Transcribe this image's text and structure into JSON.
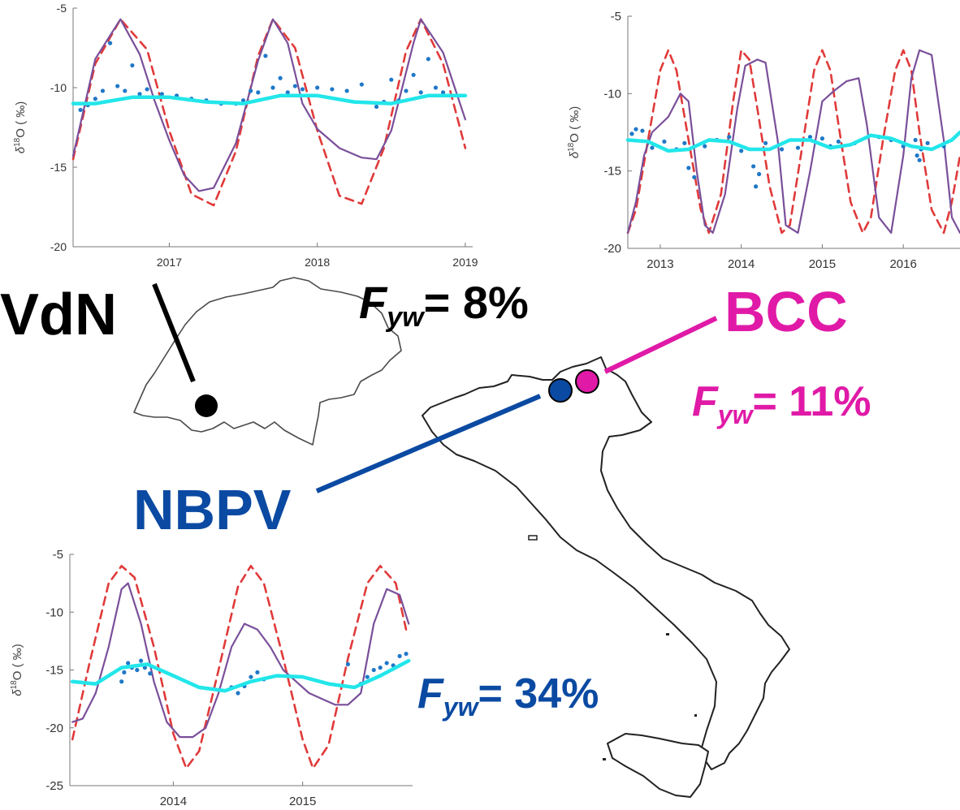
{
  "colors": {
    "vdn": "#000000",
    "bcc": "#e01aa7",
    "nbpv": "#0b4aa2",
    "sine": "#e03a3a",
    "model": "#7a4f9a",
    "young": "#22e6ea",
    "obs": "#1f78c8"
  },
  "labels": {
    "vdn": {
      "site": "VdN",
      "f_prefix": "F",
      "f_sub": "yw",
      "f_value": "= 8%"
    },
    "bcc": {
      "site": "BCC",
      "f_prefix": "F",
      "f_sub": "yw",
      "f_value": "= 11%"
    },
    "nbpv": {
      "site": "NBPV",
      "f_prefix": "F",
      "f_sub": "yw",
      "f_value": "= 34%"
    }
  },
  "maps": {
    "switzerland": {
      "marker": "vdn-site-marker"
    },
    "italy": {
      "markers": [
        "nbpv-site-marker",
        "bcc-site-marker"
      ]
    }
  },
  "chart_data": [
    {
      "id": "vdn",
      "type": "line",
      "ylabel_delta": "δ",
      "ylabel_sup": "18",
      "ylabel_rest": "O ( ‰)",
      "ylim": [
        -20,
        -5
      ],
      "yticks": [
        -5,
        -10,
        -15,
        -20
      ],
      "xlim": [
        2016.35,
        2019.05
      ],
      "xticks": [
        2017,
        2018,
        2019
      ],
      "series": [
        {
          "role": "sine",
          "style": "dashed",
          "x": [
            2016.35,
            2016.5,
            2016.67,
            2016.85,
            2017.0,
            2017.15,
            2017.3,
            2017.45,
            2017.6,
            2017.7,
            2017.85,
            2018.0,
            2018.15,
            2018.3,
            2018.45,
            2018.6,
            2018.7,
            2018.85,
            2019.0
          ],
          "y": [
            -14.5,
            -8.5,
            -5.7,
            -7.6,
            -12.7,
            -16.7,
            -17.4,
            -14.0,
            -8.0,
            -5.7,
            -7.5,
            -12.7,
            -16.8,
            -17.3,
            -13.8,
            -7.7,
            -5.7,
            -8.5,
            -13.8
          ]
        },
        {
          "role": "model",
          "style": "solid",
          "x": [
            2016.35,
            2016.5,
            2016.67,
            2016.8,
            2016.9,
            2017.0,
            2017.1,
            2017.2,
            2017.3,
            2017.45,
            2017.6,
            2017.7,
            2017.8,
            2017.9,
            2018.0,
            2018.15,
            2018.3,
            2018.4,
            2018.5,
            2018.65,
            2018.7,
            2018.85,
            2019.0
          ],
          "y": [
            -14.3,
            -8.2,
            -5.7,
            -7.9,
            -10.8,
            -13.3,
            -15.5,
            -16.5,
            -16.3,
            -13.5,
            -8.3,
            -5.7,
            -7.2,
            -11.0,
            -12.6,
            -13.8,
            -14.4,
            -14.5,
            -12.7,
            -7.2,
            -5.7,
            -7.8,
            -12.0
          ]
        },
        {
          "role": "young",
          "style": "thick",
          "x": [
            2016.35,
            2016.5,
            2016.75,
            2017.0,
            2017.25,
            2017.5,
            2017.75,
            2018.0,
            2018.25,
            2018.5,
            2018.75,
            2019.0
          ],
          "y": [
            -11.0,
            -11.0,
            -10.6,
            -10.6,
            -10.9,
            -11.0,
            -10.5,
            -10.5,
            -10.9,
            -11.0,
            -10.5,
            -10.5
          ]
        },
        {
          "role": "obs",
          "style": "dots",
          "x": [
            2016.4,
            2016.45,
            2016.5,
            2016.55,
            2016.6,
            2016.65,
            2016.7,
            2016.75,
            2016.8,
            2016.85,
            2016.95,
            2017.05,
            2017.15,
            2017.25,
            2017.35,
            2017.45,
            2017.5,
            2017.55,
            2017.6,
            2017.65,
            2017.7,
            2017.75,
            2017.8,
            2017.85,
            2017.9,
            2018.0,
            2018.1,
            2018.2,
            2018.3,
            2018.4,
            2018.45,
            2018.5,
            2018.55,
            2018.6,
            2018.65,
            2018.7,
            2018.75,
            2018.8,
            2018.85
          ],
          "y": [
            -11.4,
            -11.1,
            -10.7,
            -10.2,
            -7.2,
            -9.9,
            -10.2,
            -8.6,
            -10.4,
            -10.1,
            -10.4,
            -10.5,
            -10.7,
            -10.8,
            -11.0,
            -11.0,
            -10.8,
            -10.2,
            -10.3,
            -8.0,
            -10.0,
            -9.4,
            -10.3,
            -9.9,
            -10.1,
            -10.0,
            -10.1,
            -10.2,
            -9.8,
            -11.2,
            -10.9,
            -9.5,
            -10.8,
            -10.2,
            -9.2,
            -10.3,
            -8.2,
            -10.0,
            -10.3
          ]
        }
      ]
    },
    {
      "id": "bcc",
      "type": "line",
      "ylabel_delta": "δ",
      "ylabel_sup": "18",
      "ylabel_rest": "O ( ‰)",
      "ylim": [
        -20,
        -5
      ],
      "yticks": [
        -5,
        -10,
        -15,
        -20
      ],
      "xlim": [
        2012.6,
        2016.7
      ],
      "xticks": [
        2013,
        2014,
        2015,
        2016
      ],
      "series": [
        {
          "role": "sine",
          "style": "dashed",
          "x": [
            2012.6,
            2012.7,
            2012.85,
            2013.0,
            2013.1,
            2013.2,
            2013.35,
            2013.5,
            2013.6,
            2013.75,
            2013.9,
            2014.0,
            2014.1,
            2014.2,
            2014.35,
            2014.5,
            2014.6,
            2014.75,
            2014.9,
            2015.0,
            2015.1,
            2015.2,
            2015.35,
            2015.5,
            2015.6,
            2015.75,
            2015.9,
            2016.0,
            2016.1,
            2016.2,
            2016.35,
            2016.5,
            2016.6,
            2016.7
          ],
          "y": [
            -19.0,
            -17.5,
            -13.0,
            -8.5,
            -7.2,
            -8.5,
            -13.0,
            -17.5,
            -19.0,
            -16.5,
            -10.5,
            -7.2,
            -7.8,
            -11.0,
            -16.0,
            -19.0,
            -18.5,
            -13.5,
            -8.5,
            -7.2,
            -8.5,
            -12.0,
            -17.0,
            -19.0,
            -18.0,
            -13.0,
            -8.5,
            -7.2,
            -8.5,
            -12.5,
            -17.5,
            -19.0,
            -17.0,
            -14.0
          ]
        },
        {
          "role": "model",
          "style": "solid",
          "x": [
            2012.6,
            2012.7,
            2012.8,
            2012.9,
            2013.0,
            2013.1,
            2013.25,
            2013.35,
            2013.45,
            2013.55,
            2013.65,
            2013.8,
            2013.95,
            2014.05,
            2014.2,
            2014.3,
            2014.45,
            2014.55,
            2014.7,
            2014.85,
            2015.0,
            2015.15,
            2015.3,
            2015.45,
            2015.55,
            2015.7,
            2015.85,
            2016.0,
            2016.1,
            2016.2,
            2016.35,
            2016.5,
            2016.6,
            2016.7
          ],
          "y": [
            -19.0,
            -17.0,
            -14.0,
            -12.5,
            -12.0,
            -11.5,
            -10.0,
            -10.5,
            -15.0,
            -18.5,
            -19.0,
            -16.5,
            -11.0,
            -8.2,
            -7.8,
            -8.0,
            -13.0,
            -18.5,
            -19.0,
            -15.0,
            -10.5,
            -9.8,
            -9.2,
            -9.0,
            -12.0,
            -18.0,
            -19.0,
            -14.0,
            -9.0,
            -7.2,
            -7.5,
            -13.0,
            -18.0,
            -19.0
          ]
        },
        {
          "role": "young",
          "style": "thick",
          "x": [
            2012.6,
            2012.85,
            2013.1,
            2013.35,
            2013.6,
            2013.85,
            2014.1,
            2014.35,
            2014.6,
            2014.85,
            2015.1,
            2015.35,
            2015.6,
            2015.85,
            2016.1,
            2016.35,
            2016.6,
            2016.7
          ],
          "y": [
            -13.0,
            -13.1,
            -13.7,
            -13.6,
            -13.0,
            -13.1,
            -13.6,
            -13.6,
            -13.0,
            -13.0,
            -13.5,
            -13.3,
            -12.7,
            -12.9,
            -13.4,
            -13.6,
            -13.0,
            -12.5
          ]
        },
        {
          "role": "obs",
          "style": "dots",
          "x": [
            2012.65,
            2012.7,
            2012.78,
            2012.9,
            2013.05,
            2013.2,
            2013.3,
            2013.35,
            2013.42,
            2013.55,
            2013.7,
            2013.85,
            2014.0,
            2014.15,
            2014.18,
            2014.22,
            2014.3,
            2014.5,
            2014.7,
            2014.85,
            2015.0,
            2015.1,
            2015.2,
            2015.4,
            2015.7,
            2015.85,
            2016.0,
            2016.15,
            2016.17,
            2016.2,
            2016.22,
            2016.3,
            2016.5
          ],
          "y": [
            -12.6,
            -12.3,
            -12.4,
            -13.5,
            -13.1,
            -13.6,
            -13.2,
            -14.8,
            -15.4,
            -13.4,
            -13.0,
            -12.8,
            -13.7,
            -14.7,
            -16.0,
            -15.2,
            -13.2,
            -13.6,
            -13.5,
            -12.8,
            -12.9,
            -13.4,
            -13.1,
            -13.2,
            -12.8,
            -13.0,
            -13.4,
            -13.0,
            -14.0,
            -14.3,
            -13.6,
            -13.2,
            -13.4
          ]
        }
      ]
    },
    {
      "id": "nbpv",
      "type": "line",
      "ylabel_delta": "δ",
      "ylabel_sup": "18",
      "ylabel_rest": "O ( ‰)",
      "ylim": [
        -25,
        -5
      ],
      "yticks": [
        -5,
        -10,
        -15,
        -20,
        -25
      ],
      "xlim": [
        2013.2,
        2015.85
      ],
      "xticks": [
        2014,
        2015
      ],
      "series": [
        {
          "role": "sine",
          "style": "dashed",
          "x": [
            2013.22,
            2013.35,
            2013.5,
            2013.6,
            2013.7,
            2013.85,
            2014.0,
            2014.1,
            2014.2,
            2014.35,
            2014.5,
            2014.6,
            2014.7,
            2014.85,
            2015.0,
            2015.08,
            2015.2,
            2015.35,
            2015.5,
            2015.6,
            2015.72,
            2015.8
          ],
          "y": [
            -21.0,
            -14.5,
            -7.5,
            -6.0,
            -7.0,
            -13.0,
            -20.5,
            -23.5,
            -22.0,
            -15.0,
            -7.8,
            -6.0,
            -7.5,
            -14.0,
            -21.0,
            -23.5,
            -21.5,
            -14.0,
            -7.5,
            -6.0,
            -7.5,
            -11.5
          ]
        },
        {
          "role": "model",
          "style": "solid",
          "x": [
            2013.22,
            2013.3,
            2013.4,
            2013.5,
            2013.6,
            2013.65,
            2013.75,
            2013.85,
            2013.95,
            2014.05,
            2014.15,
            2014.25,
            2014.35,
            2014.45,
            2014.55,
            2014.65,
            2014.75,
            2014.85,
            2014.95,
            2015.05,
            2015.15,
            2015.25,
            2015.35,
            2015.45,
            2015.55,
            2015.65,
            2015.75,
            2015.82
          ],
          "y": [
            -19.5,
            -19.2,
            -17.0,
            -13.0,
            -8.0,
            -7.5,
            -11.0,
            -16.0,
            -19.5,
            -20.8,
            -20.8,
            -20.0,
            -17.0,
            -13.0,
            -11.0,
            -11.5,
            -13.0,
            -15.0,
            -16.0,
            -17.0,
            -17.5,
            -18.0,
            -18.0,
            -17.0,
            -11.0,
            -8.0,
            -8.5,
            -11.0
          ]
        },
        {
          "role": "young",
          "style": "thick",
          "x": [
            2013.22,
            2013.4,
            2013.6,
            2013.8,
            2014.0,
            2014.2,
            2014.4,
            2014.6,
            2014.8,
            2015.0,
            2015.2,
            2015.4,
            2015.6,
            2015.82
          ],
          "y": [
            -16.0,
            -16.2,
            -14.8,
            -14.5,
            -15.5,
            -16.5,
            -16.8,
            -16.0,
            -15.5,
            -15.6,
            -16.2,
            -16.5,
            -15.5,
            -14.2
          ]
        },
        {
          "role": "obs",
          "style": "dots",
          "x": [
            2013.6,
            2013.62,
            2013.65,
            2013.68,
            2013.72,
            2013.75,
            2013.78,
            2013.82,
            2014.45,
            2014.5,
            2014.55,
            2014.6,
            2014.65,
            2014.7,
            2015.35,
            2015.45,
            2015.5,
            2015.55,
            2015.6,
            2015.65,
            2015.7,
            2015.75,
            2015.8
          ],
          "y": [
            -16.0,
            -15.2,
            -14.4,
            -14.8,
            -15.0,
            -14.2,
            -14.8,
            -15.3,
            -16.5,
            -17.0,
            -16.4,
            -15.6,
            -15.2,
            -15.8,
            -14.5,
            -16.2,
            -15.6,
            -15.0,
            -14.8,
            -14.4,
            -14.6,
            -13.8,
            -13.6
          ]
        }
      ]
    }
  ]
}
